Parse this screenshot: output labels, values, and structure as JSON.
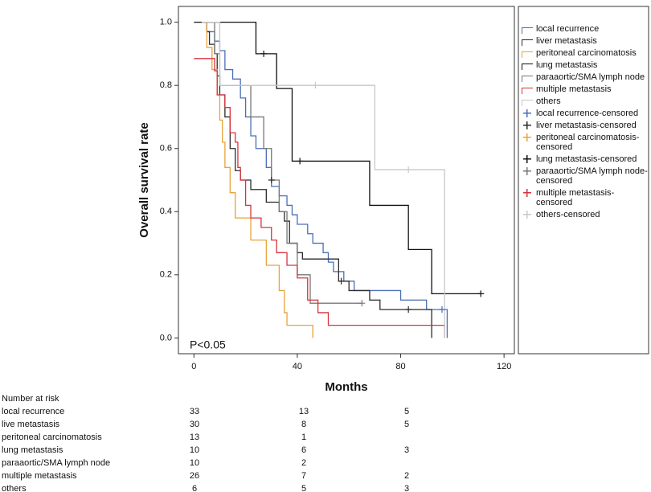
{
  "chart_data": {
    "type": "line",
    "style": "step",
    "xlabel": "Months",
    "ylabel": "Overall survival rate",
    "annotation": "P<0.05",
    "xlim": [
      -6,
      124
    ],
    "ylim": [
      -0.05,
      1.05
    ],
    "xticks": [
      0,
      40,
      80,
      120
    ],
    "yticks": [
      {
        "value": 0,
        "label": "0.0"
      },
      0.2,
      0.4,
      0.6,
      0.8,
      {
        "value": 1,
        "label": "1.0"
      }
    ],
    "series": [
      {
        "name": "local recurrence",
        "color": "#4a6fb5",
        "style": "step",
        "x": [
          3,
          5,
          8,
          10,
          12,
          15,
          18,
          20,
          22,
          24,
          28,
          30,
          33,
          36,
          38,
          40,
          44,
          46,
          50,
          52,
          54,
          58,
          62,
          80,
          90,
          98
        ],
        "values": [
          1,
          0.97,
          0.94,
          0.91,
          0.85,
          0.82,
          0.76,
          0.7,
          0.64,
          0.6,
          0.54,
          0.48,
          0.45,
          0.42,
          0.39,
          0.36,
          0.33,
          0.3,
          0.27,
          0.24,
          0.21,
          0.18,
          0.15,
          0.12,
          0.09,
          0
        ]
      },
      {
        "name": "liver metastasis",
        "color": "#2b2b2b",
        "style": "step",
        "x": [
          3,
          5,
          6,
          8,
          9,
          10,
          12,
          14,
          16,
          18,
          22,
          28,
          33,
          35,
          37,
          40,
          42,
          56,
          60,
          68,
          72,
          92
        ],
        "values": [
          1,
          0.97,
          0.93,
          0.9,
          0.83,
          0.77,
          0.7,
          0.6,
          0.53,
          0.5,
          0.47,
          0.43,
          0.4,
          0.37,
          0.3,
          0.27,
          0.25,
          0.18,
          0.15,
          0.12,
          0.09,
          0
        ]
      },
      {
        "name": "peritoneal carcinomatosis",
        "color": "#e8a33a",
        "style": "step",
        "x": [
          3,
          5,
          7,
          9,
          10,
          11,
          12,
          14,
          16,
          22,
          28,
          33,
          35,
          36,
          46
        ],
        "values": [
          1,
          0.92,
          0.85,
          0.77,
          0.69,
          0.62,
          0.54,
          0.46,
          0.38,
          0.31,
          0.23,
          0.15,
          0.08,
          0.04,
          0
        ]
      },
      {
        "name": "lung metastasis",
        "color": "#111111",
        "style": "step",
        "x": [
          0,
          24,
          32,
          38,
          68,
          83,
          92,
          111
        ],
        "values": [
          1,
          0.9,
          0.79,
          0.56,
          0.42,
          0.28,
          0.14,
          0.14
        ]
      },
      {
        "name": "paraaortic/SMA lymph node",
        "color": "#777777",
        "style": "step",
        "x": [
          3,
          8,
          10,
          22,
          27,
          30,
          33,
          36,
          40,
          45,
          65
        ],
        "values": [
          1,
          0.9,
          0.8,
          0.7,
          0.6,
          0.5,
          0.4,
          0.3,
          0.2,
          0.11,
          0.11
        ]
      },
      {
        "name": "multiple metastasis",
        "color": "#d9333a",
        "style": "step",
        "x": [
          0,
          8,
          9,
          12,
          14,
          16,
          17,
          18,
          20,
          22,
          26,
          30,
          32,
          36,
          40,
          44,
          48,
          52,
          97
        ],
        "values": [
          0.885,
          0.846,
          0.77,
          0.73,
          0.65,
          0.62,
          0.54,
          0.5,
          0.42,
          0.38,
          0.35,
          0.31,
          0.27,
          0.23,
          0.19,
          0.12,
          0.08,
          0.04,
          0
        ]
      },
      {
        "name": "others",
        "color": "#c8c8c8",
        "style": "step",
        "x": [
          3,
          10,
          70,
          97
        ],
        "values": [
          1,
          0.8,
          0.533,
          0
        ]
      },
      {
        "name": "local recurrence-censored",
        "color": "#4a6fb5",
        "style": "censored",
        "x": [
          96
        ],
        "values": [
          0.09
        ]
      },
      {
        "name": "liver metastasis-censored",
        "color": "#2b2b2b",
        "style": "censored",
        "x": [
          30,
          57,
          83
        ],
        "values": [
          0.5,
          0.18,
          0.09
        ]
      },
      {
        "name": "peritoneal carcinomatosis-censored",
        "color": "#e8a33a",
        "style": "censored",
        "x": [],
        "values": []
      },
      {
        "name": "lung metastasis-censored",
        "color": "#111111",
        "style": "censored",
        "x": [
          27,
          41,
          111
        ],
        "values": [
          0.9,
          0.56,
          0.14
        ]
      },
      {
        "name": "paraaortic/SMA lymph node-censored",
        "color": "#777777",
        "style": "censored",
        "x": [
          65
        ],
        "values": [
          0.11
        ]
      },
      {
        "name": "multiple metastasis-censored",
        "color": "#d9333a",
        "style": "censored",
        "x": [],
        "values": []
      },
      {
        "name": "others-censored",
        "color": "#c8c8c8",
        "style": "censored",
        "x": [
          47,
          83
        ],
        "values": [
          0.8,
          0.533
        ]
      }
    ]
  },
  "risk_table": {
    "title": "Number at risk",
    "rows": [
      {
        "label": "local recurrence",
        "counts": [
          33,
          13,
          5
        ]
      },
      {
        "label": "live metastasis",
        "counts": [
          30,
          8,
          5
        ]
      },
      {
        "label": "peritoneal carcinomatosis",
        "counts": [
          13,
          1
        ]
      },
      {
        "label": "lung metastasis",
        "counts": [
          10,
          6,
          3
        ]
      },
      {
        "label": "paraaortic/SMA lymph node",
        "counts": [
          10,
          2
        ]
      },
      {
        "label": "multiple metastasis",
        "counts": [
          26,
          7,
          2
        ]
      },
      {
        "label": "others",
        "counts": [
          6,
          5,
          3
        ]
      }
    ]
  }
}
